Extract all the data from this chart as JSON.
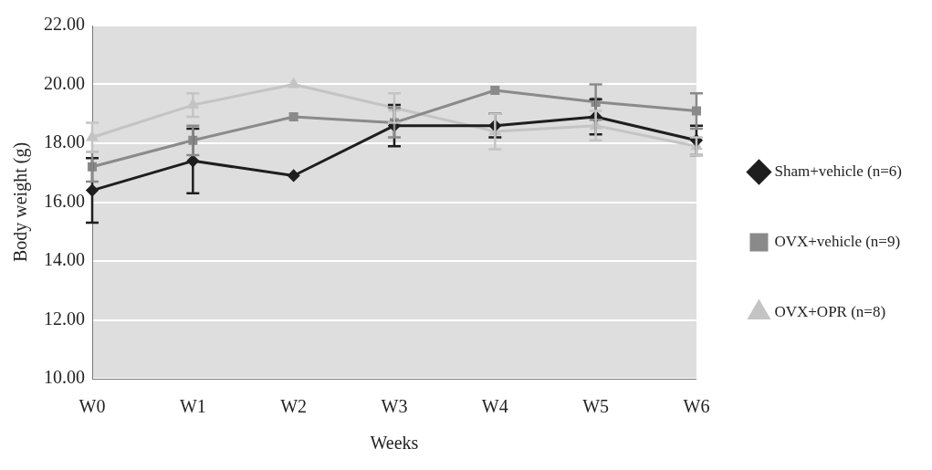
{
  "chart_data": {
    "type": "line",
    "xlabel": "Weeks",
    "ylabel": "Body weight (g)",
    "categories": [
      "W0",
      "W1",
      "W2",
      "W3",
      "W4",
      "W5",
      "W6"
    ],
    "ylim": [
      10,
      22
    ],
    "yticks": [
      {
        "value": 10,
        "label": "10.00"
      },
      {
        "value": 12,
        "label": "12.00"
      },
      {
        "value": 14,
        "label": "14.00"
      },
      {
        "value": 16,
        "label": "16.00"
      },
      {
        "value": 18,
        "label": "18.00"
      },
      {
        "value": 20,
        "label": "20.00"
      },
      {
        "value": 22,
        "label": "22.00"
      }
    ],
    "grid": "y",
    "legend": "right",
    "series": [
      {
        "name": "Sham+vehicle (n=6)",
        "color": "#1e1e1e",
        "marker": "diamond",
        "values": [
          16.4,
          17.4,
          16.9,
          18.6,
          18.6,
          18.9,
          18.1
        ],
        "errors": [
          1.1,
          1.1,
          null,
          0.7,
          0.4,
          0.6,
          0.5
        ]
      },
      {
        "name": "OVX+vehicle (n=9)",
        "color": "#8a8a8a",
        "marker": "square",
        "values": [
          17.2,
          18.1,
          18.9,
          18.7,
          19.8,
          19.4,
          19.1
        ],
        "errors": [
          0.5,
          0.5,
          null,
          0.5,
          null,
          0.6,
          0.6
        ]
      },
      {
        "name": "OVX+OPR (n=8)",
        "color": "#c4c4c4",
        "marker": "triangle",
        "values": [
          18.2,
          19.3,
          20.0,
          19.2,
          18.4,
          18.6,
          17.9
        ],
        "errors": [
          0.5,
          0.4,
          null,
          0.5,
          0.6,
          0.5,
          0.3
        ]
      }
    ]
  }
}
